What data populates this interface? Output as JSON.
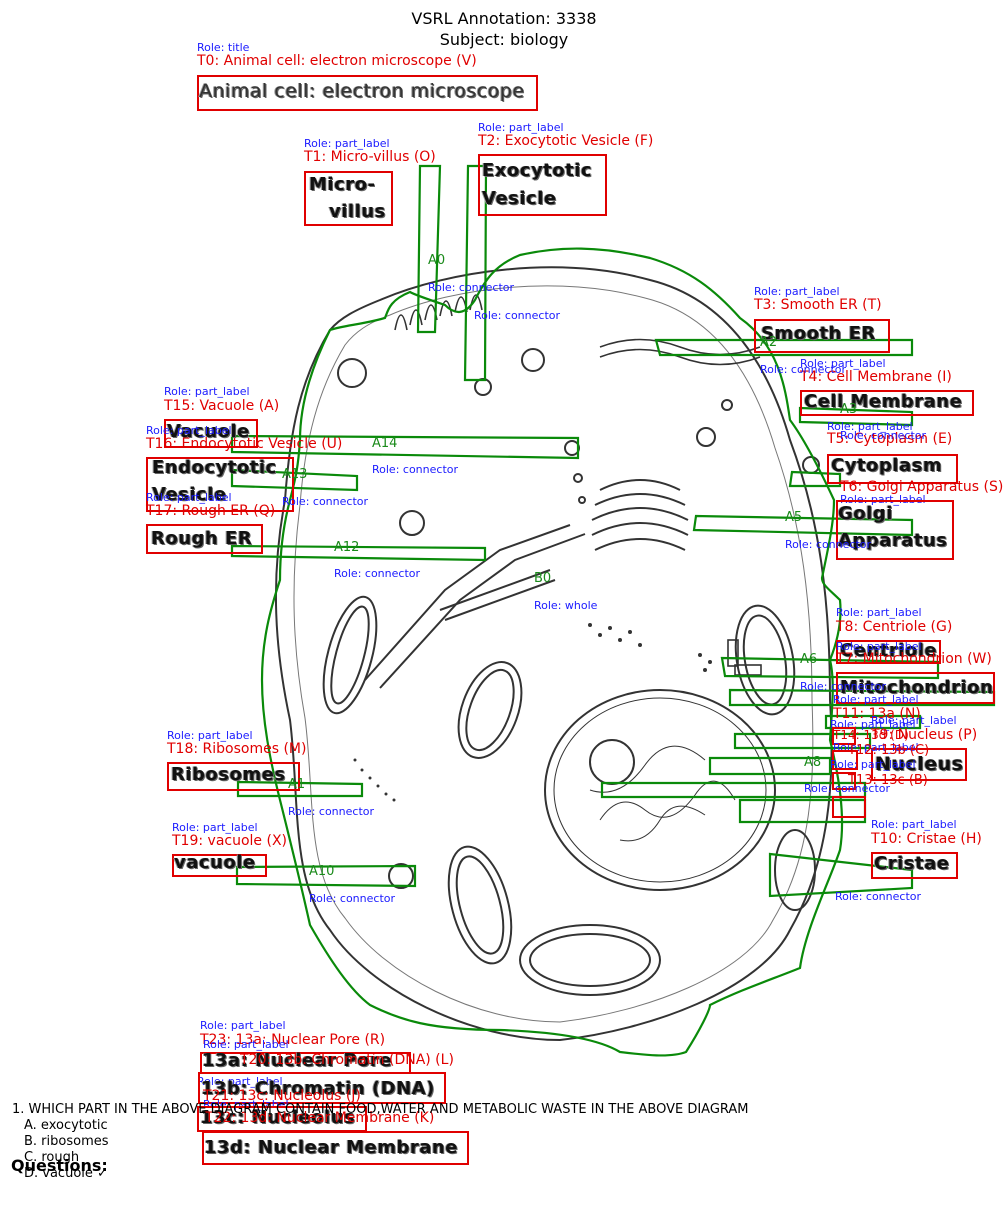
{
  "header": {
    "annotation": "VSRL Annotation: 3338",
    "subject": "Subject: biology"
  },
  "image_title": "Animal cell: electron microscope",
  "labels": {
    "micro1": "Micro-",
    "micro2": "villus",
    "exo1": "Exocytotic",
    "exo2": "Vesicle",
    "smooth": "Smooth ER",
    "cellmem": "Cell Membrane",
    "cyto": "Cytoplasm",
    "golgi1": "Golgi",
    "golgi2": "Apparatus",
    "centriole": "Centriole",
    "mito": "Mitochondrion",
    "nucleus": "Nucleus",
    "cristae": "Cristae",
    "vacuole_top": "Vacuole",
    "endo1": "Endocytotic",
    "endo2": "Vesicle",
    "rough": "Rough ER",
    "ribosomes": "Ribosomes",
    "vacuole_low": "vacuole",
    "n13a": "13a: Nuclear Pore",
    "n13b": "13b: Chromatin (DNA)",
    "n13c": "13c: Nucleolus",
    "n13d": "13d: Nuclear Membrane"
  },
  "annotations": {
    "t0_role": "Role: title",
    "t0": "T0: Animal cell: electron microscope (V)",
    "t1_role": "Role: part_label",
    "t1": "T1: Micro-villus (O)",
    "t2_role": "Role: part_label",
    "t2": "T2: Exocytotic Vesicle (F)",
    "t3_role": "Role: part_label",
    "t3": "T3: Smooth ER (T)",
    "t4_role": "Role: part_label",
    "t4": "T4: Cell Membrane (I)",
    "t5_role": "Role: part_label",
    "t5": "T5: Cytoplasm (E)",
    "t6_role": "Role: part_label",
    "t6": "T6: Golgi Apparatus (S)",
    "t7_role": "Role: part_label",
    "t7": "T7: Mitochondrion (W)",
    "t8_role": "Role: part_label",
    "t8": "T8: Centriole (G)",
    "t9_role": "Role: part_label",
    "t9": "T9: Nucleus (P)",
    "t10_role": "Role: part_label",
    "t10": "T10: Cristae (H)",
    "t11_role": "Role: part_label",
    "t11": "T11: 13a (N)",
    "t12_role": "Role: part_label",
    "t12": "T12: 13b (C)",
    "t13_role": "Role: part_label",
    "t13": "T13: 13c (B)",
    "t14_role": "Role: part_label",
    "t14": "T14: 13d (D)",
    "t15_role": "Role: part_label",
    "t15": "T15: Vacuole (A)",
    "t16_role": "Role: part_label",
    "t16": "T16: Endocytotic Vesicle (U)",
    "t17_role": "Role: part_label",
    "t17": "T17: Rough ER (Q)",
    "t18_role": "Role: part_label",
    "t18": "T18: Ribosomes (M)",
    "t19_role": "Role: part_label",
    "t19": "T19: vacuole (X)",
    "t20_role": "Role: part_label",
    "t20": "T20: 13b: Chromatin (DNA) (L)",
    "t21_role": "Role: part_label",
    "t21": "T21: 13c: Nucleolus (J)",
    "t22_role": "Role: part_label",
    "t22": "T22: 13d: Nuclear Membrane (K)",
    "t23_role": "Role: part_label",
    "t23": "T23: 13a: Nuclear Pore (R)"
  },
  "arrows": {
    "a0": "A0",
    "a1": "A1",
    "a2": "A2",
    "a3": "A3",
    "a5": "A5",
    "a6": "A6",
    "a8": "A8",
    "a10": "A10",
    "a12": "A12",
    "a13": "A13",
    "a14": "A14",
    "b0": "B0",
    "connector": "Role: connector",
    "whole": "Role: whole"
  },
  "question": {
    "text": "1. WHICH PART IN THE ABOVE DIAGRAM CONTAIN FOOD,WATER AND METABOLIC WASTE  IN THE ABOVE DIAGRAM",
    "a": "A. exocytotic",
    "b": "B. ribosomes",
    "c": "C. rough",
    "d": "D. vacuole ✓",
    "heading": "Questions:"
  },
  "colors": {
    "box": "#e00000",
    "role": "#1a1aff",
    "connector": "#1a8a1a"
  }
}
